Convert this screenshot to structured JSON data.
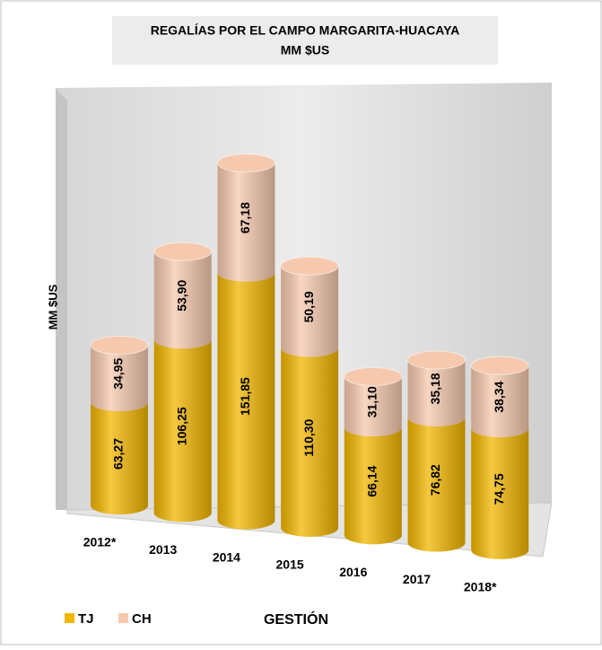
{
  "chart_data": {
    "type": "bar3d-cylinder-stacked",
    "title": "REGALÍAS POR EL CAMPO MARGARITA-HUACAYA",
    "subtitle": "MM $US",
    "y_label": "MM $US",
    "x_label": "GESTIÓN",
    "categories": [
      "2012*",
      "2013",
      "2014",
      "2015",
      "2016",
      "2017",
      "2018*"
    ],
    "series": [
      {
        "name": "TJ",
        "color": "#f2b600",
        "values": [
          63.27,
          106.25,
          151.85,
          110.3,
          66.14,
          76.82,
          74.75
        ],
        "value_labels": [
          "63,27",
          "106,25",
          "151,85",
          "110,30",
          "66,14",
          "76,82",
          "74,75"
        ]
      },
      {
        "name": "CH",
        "color": "#f6c9ae",
        "values": [
          34.95,
          53.9,
          67.18,
          50.19,
          31.1,
          35.18,
          38.34
        ],
        "value_labels": [
          "34,95",
          "53,90",
          "67,18",
          "50,19",
          "31,10",
          "35,18",
          "38,34"
        ]
      }
    ],
    "legend": "bottom-left"
  }
}
